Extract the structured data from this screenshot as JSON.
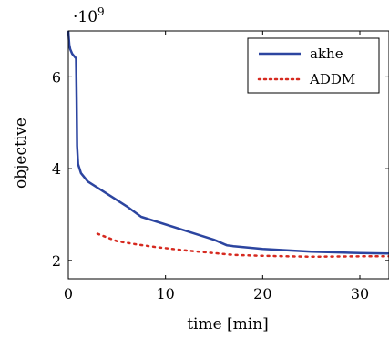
{
  "chart_data": {
    "type": "line",
    "xlabel": "time [min]",
    "ylabel": "objective",
    "y_scale_label": "·10",
    "y_scale_exponent": "9",
    "xlim": [
      0,
      33
    ],
    "ylim": [
      1.6,
      7.0
    ],
    "x_ticks": [
      0,
      10,
      20,
      30
    ],
    "y_ticks": [
      2,
      4,
      6
    ],
    "grid": false,
    "legend_position": "top-right",
    "series": [
      {
        "name": "akhe",
        "color": "#2c45a0",
        "style": "solid",
        "points": [
          [
            0.0,
            7.0
          ],
          [
            0.05,
            6.85
          ],
          [
            0.1,
            6.7
          ],
          [
            0.2,
            6.6
          ],
          [
            0.4,
            6.5
          ],
          [
            0.6,
            6.45
          ],
          [
            0.8,
            6.4
          ],
          [
            0.85,
            5.5
          ],
          [
            0.9,
            4.5
          ],
          [
            1.0,
            4.1
          ],
          [
            1.3,
            3.9
          ],
          [
            2.0,
            3.72
          ],
          [
            4.0,
            3.45
          ],
          [
            6.0,
            3.18
          ],
          [
            7.5,
            2.95
          ],
          [
            9.0,
            2.85
          ],
          [
            12.0,
            2.65
          ],
          [
            15.0,
            2.45
          ],
          [
            16.3,
            2.33
          ],
          [
            17.0,
            2.31
          ],
          [
            20.0,
            2.25
          ],
          [
            25.0,
            2.19
          ],
          [
            30.0,
            2.16
          ],
          [
            33.0,
            2.15
          ]
        ]
      },
      {
        "name": "ADDM",
        "color": "#d62a20",
        "style": "dotted",
        "points": [
          [
            3.0,
            2.58
          ],
          [
            5.0,
            2.42
          ],
          [
            7.0,
            2.35
          ],
          [
            9.0,
            2.29
          ],
          [
            12.0,
            2.22
          ],
          [
            15.0,
            2.16
          ],
          [
            17.0,
            2.12
          ],
          [
            20.0,
            2.1
          ],
          [
            25.0,
            2.08
          ],
          [
            30.0,
            2.09
          ],
          [
            33.0,
            2.09
          ]
        ]
      }
    ]
  }
}
